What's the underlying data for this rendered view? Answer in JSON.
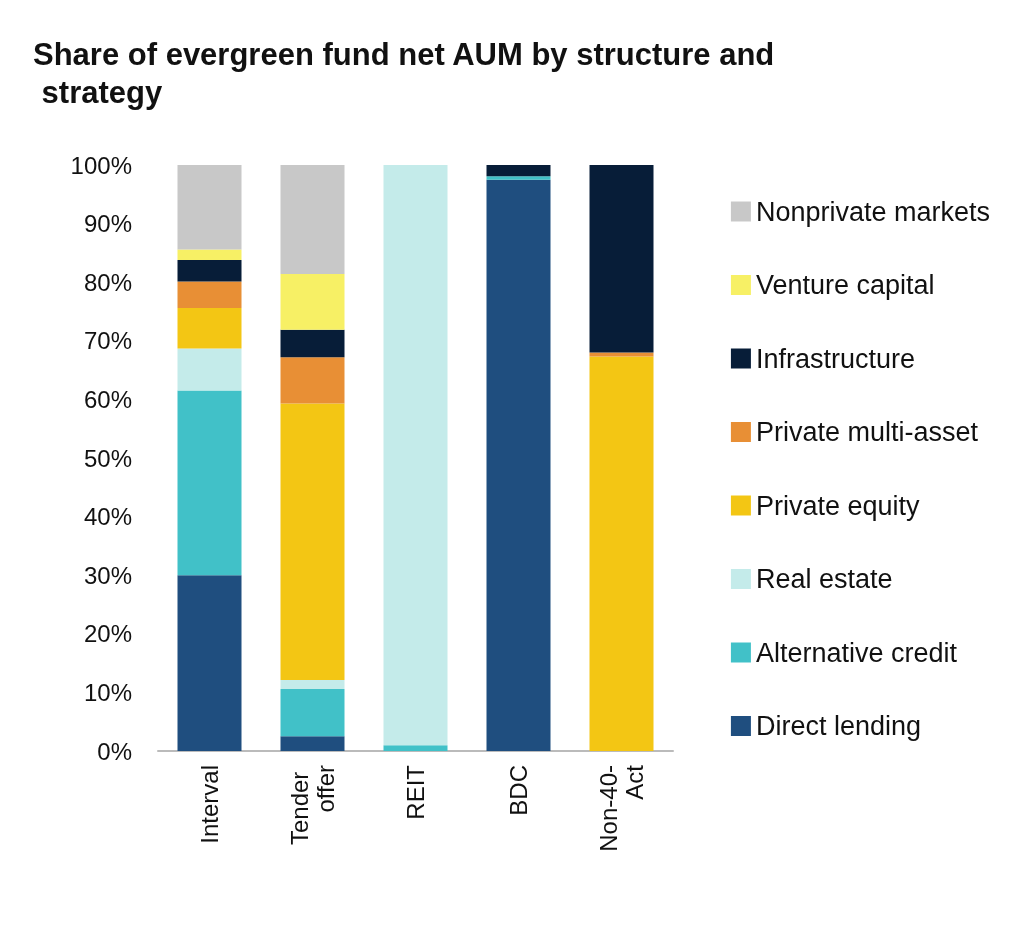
{
  "chart_data": {
    "type": "bar",
    "title": "Share of evergreen fund net AUM by structure and strategy",
    "stacked": true,
    "categories": [
      "Interval",
      "Tender offer",
      "REIT",
      "BDC",
      "Non-40-Act"
    ],
    "series": [
      {
        "name": "Direct lending",
        "color": "#1f4e7f",
        "values": [
          30,
          2.5,
          0,
          97.5,
          0
        ]
      },
      {
        "name": "Alternative credit",
        "color": "#41c1c8",
        "values": [
          31.5,
          8.1,
          1,
          0.6,
          0
        ]
      },
      {
        "name": "Real estate",
        "color": "#c4ebea",
        "values": [
          7.2,
          1.5,
          99,
          0,
          0
        ]
      },
      {
        "name": "Private equity",
        "color": "#f3c614",
        "values": [
          6.9,
          47.2,
          0,
          0,
          67.3
        ]
      },
      {
        "name": "Private multi-asset",
        "color": "#e88f35",
        "values": [
          4.5,
          7.9,
          0,
          0,
          0.7
        ]
      },
      {
        "name": "Infrastructure",
        "color": "#071d38",
        "values": [
          3.7,
          4.7,
          0,
          1.9,
          32
        ]
      },
      {
        "name": "Venture capital",
        "color": "#f7f065",
        "values": [
          1.8,
          9.5,
          0,
          0,
          0
        ]
      },
      {
        "name": "Nonprivate markets",
        "color": "#c8c8c8",
        "values": [
          14.4,
          18.6,
          0,
          0,
          0
        ]
      }
    ],
    "ylim": [
      0,
      100
    ],
    "yticks": [
      {
        "value": 0,
        "label": "0%"
      },
      {
        "value": 10,
        "label": "10%"
      },
      {
        "value": 20,
        "label": "20%"
      },
      {
        "value": 30,
        "label": "30%"
      },
      {
        "value": 40,
        "label": "40%"
      },
      {
        "value": 50,
        "label": "50%"
      },
      {
        "value": 60,
        "label": "60%"
      },
      {
        "value": 70,
        "label": "70%"
      },
      {
        "value": 80,
        "label": "80%"
      },
      {
        "value": 90,
        "label": "90%"
      },
      {
        "value": 100,
        "label": "100%"
      }
    ],
    "grid": false,
    "legend": "right"
  }
}
